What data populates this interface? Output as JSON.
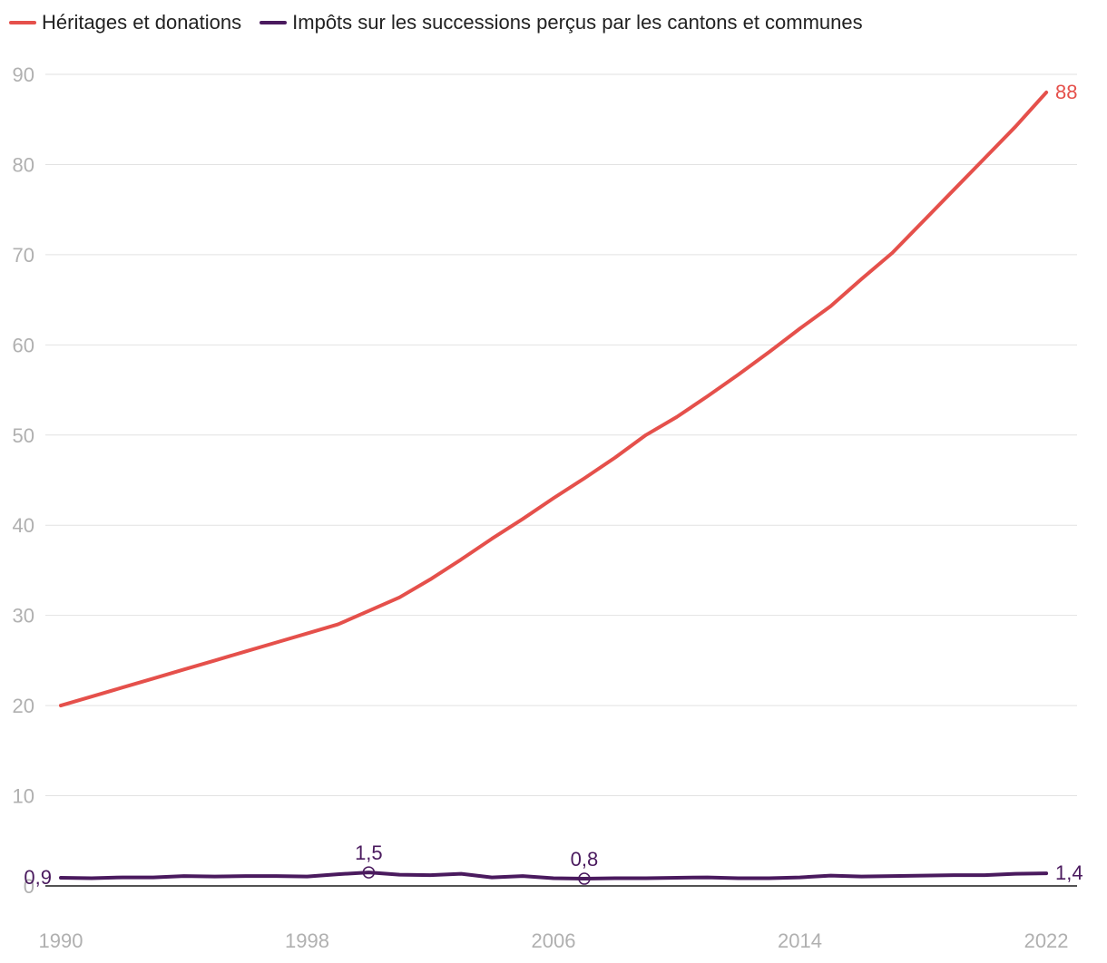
{
  "chart_data": {
    "type": "line",
    "x": [
      1990,
      1991,
      1992,
      1993,
      1994,
      1995,
      1996,
      1997,
      1998,
      1999,
      2000,
      2001,
      2002,
      2003,
      2004,
      2005,
      2006,
      2007,
      2008,
      2009,
      2010,
      2011,
      2012,
      2013,
      2014,
      2015,
      2016,
      2017,
      2018,
      2019,
      2020,
      2021,
      2022
    ],
    "series": [
      {
        "name": "Héritages et donations",
        "color": "#e5504b",
        "values": [
          20,
          21,
          22,
          23,
          24,
          25,
          26,
          27,
          28,
          29,
          30.5,
          32,
          34,
          36.2,
          38.5,
          40.7,
          43,
          45.2,
          47.5,
          50,
          52,
          54.3,
          56.7,
          59.2,
          61.8,
          64.3,
          67.3,
          70.2,
          73.7,
          77.2,
          80.7,
          84.2,
          88
        ]
      },
      {
        "name": "Impôts sur les successions perçus par les cantons et communes",
        "color": "#4a1a5e",
        "values": [
          0.9,
          0.85,
          0.95,
          0.95,
          1.1,
          1.05,
          1.1,
          1.1,
          1.05,
          1.3,
          1.5,
          1.25,
          1.2,
          1.35,
          0.95,
          1.1,
          0.85,
          0.8,
          0.85,
          0.85,
          0.9,
          0.95,
          0.85,
          0.85,
          0.95,
          1.15,
          1.05,
          1.1,
          1.15,
          1.2,
          1.2,
          1.35,
          1.4
        ]
      }
    ],
    "annotations": [
      {
        "series": 1,
        "index": 0,
        "text": "0,9",
        "pos": "left",
        "marker": false
      },
      {
        "series": 1,
        "index": 10,
        "text": "1,5",
        "pos": "above",
        "marker": true
      },
      {
        "series": 1,
        "index": 17,
        "text": "0,8",
        "pos": "above",
        "marker": true
      },
      {
        "series": 1,
        "index": 32,
        "text": "1,4",
        "pos": "right",
        "marker": false
      },
      {
        "series": 0,
        "index": 32,
        "text": "88",
        "pos": "right",
        "marker": false
      }
    ],
    "ylim": [
      0,
      90
    ],
    "yticks": [
      0,
      10,
      20,
      30,
      40,
      50,
      60,
      70,
      80,
      90
    ],
    "xticks": [
      1990,
      1998,
      2006,
      2014,
      2022
    ],
    "xlim": [
      1989.5,
      2023
    ],
    "grid": true,
    "title": "",
    "xlabel": "",
    "ylabel": "",
    "legend_position": "top-left"
  }
}
